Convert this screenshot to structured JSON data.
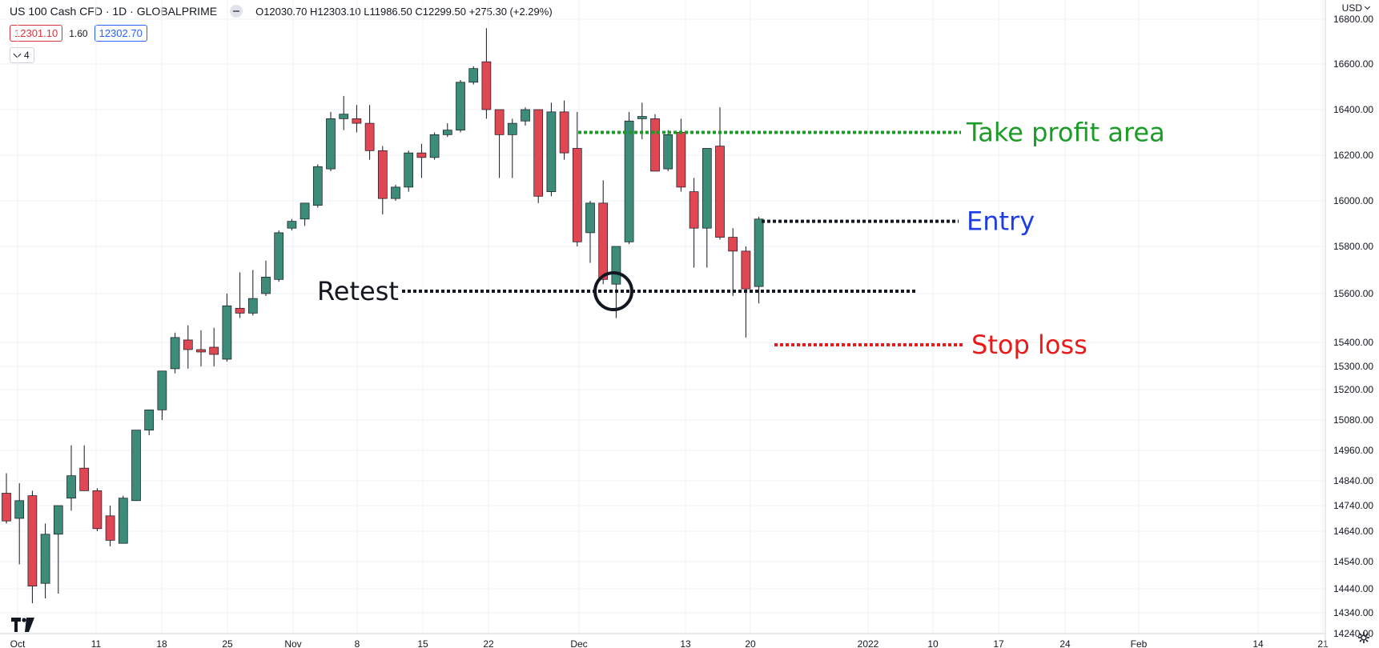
{
  "header": {
    "symbol": "US 100 Cash CFD · 1D · GLOBALPRIME",
    "ohlc": "O12030.70 H12303.10 L11986.50 C12299.50 +275.30 (+2.29%)"
  },
  "quote": {
    "sell": "12301.10",
    "spread": "1.60",
    "buy": "12302.70"
  },
  "indicators_collapsed": "4",
  "currency": "USD",
  "colors": {
    "up": "#3d8c79",
    "down": "#df4852",
    "grid": "#eef0f3",
    "axis_text": "#131722"
  },
  "chart_data": {
    "type": "candlestick",
    "x_tick_labels": [
      "Oct",
      "11",
      "18",
      "25",
      "Nov",
      "8",
      "15",
      "22",
      "Dec",
      "13",
      "20",
      "2022",
      "10",
      "17",
      "24",
      "Feb",
      "14",
      "21"
    ],
    "y_tick_labels": [
      "16800.00",
      "16600.00",
      "16400.00",
      "16200.00",
      "16000.00",
      "15800.00",
      "15600.00",
      "15400.00",
      "15300.00",
      "15200.00",
      "15080.00",
      "14960.00",
      "14840.00",
      "14740.00",
      "14640.00",
      "14540.00",
      "14440.00",
      "14340.00",
      "14240.00"
    ],
    "candles": [
      {
        "o": 14790,
        "h": 14870,
        "l": 14670,
        "c": 14680
      },
      {
        "o": 14690,
        "h": 14830,
        "l": 14530,
        "c": 14760
      },
      {
        "o": 14780,
        "h": 14800,
        "l": 14380,
        "c": 14450
      },
      {
        "o": 14460,
        "h": 14670,
        "l": 14400,
        "c": 14630
      },
      {
        "o": 14630,
        "h": 14740,
        "l": 14420,
        "c": 14740
      },
      {
        "o": 14770,
        "h": 14980,
        "l": 14720,
        "c": 14860
      },
      {
        "o": 14890,
        "h": 14980,
        "l": 14820,
        "c": 14800
      },
      {
        "o": 14800,
        "h": 14810,
        "l": 14640,
        "c": 14650
      },
      {
        "o": 14700,
        "h": 14740,
        "l": 14590,
        "c": 14610
      },
      {
        "o": 14600,
        "h": 14780,
        "l": 14600,
        "c": 14770
      },
      {
        "o": 14760,
        "h": 15040,
        "l": 14760,
        "c": 15040
      },
      {
        "o": 15040,
        "h": 15120,
        "l": 15020,
        "c": 15120
      },
      {
        "o": 15120,
        "h": 15280,
        "l": 15080,
        "c": 15280
      },
      {
        "o": 15290,
        "h": 15440,
        "l": 15270,
        "c": 15420
      },
      {
        "o": 15410,
        "h": 15470,
        "l": 15290,
        "c": 15370
      },
      {
        "o": 15370,
        "h": 15450,
        "l": 15300,
        "c": 15360
      },
      {
        "o": 15380,
        "h": 15460,
        "l": 15300,
        "c": 15350
      },
      {
        "o": 15330,
        "h": 15600,
        "l": 15320,
        "c": 15550
      },
      {
        "o": 15540,
        "h": 15690,
        "l": 15500,
        "c": 15520
      },
      {
        "o": 15520,
        "h": 15700,
        "l": 15510,
        "c": 15580
      },
      {
        "o": 15600,
        "h": 15740,
        "l": 15590,
        "c": 15670
      },
      {
        "o": 15660,
        "h": 15870,
        "l": 15650,
        "c": 15860
      },
      {
        "o": 15880,
        "h": 15920,
        "l": 15870,
        "c": 15910
      },
      {
        "o": 15920,
        "h": 15980,
        "l": 15890,
        "c": 15990
      },
      {
        "o": 15980,
        "h": 16160,
        "l": 15970,
        "c": 16150
      },
      {
        "o": 16140,
        "h": 16390,
        "l": 16130,
        "c": 16360
      },
      {
        "o": 16360,
        "h": 16460,
        "l": 16310,
        "c": 16380
      },
      {
        "o": 16360,
        "h": 16420,
        "l": 16300,
        "c": 16340
      },
      {
        "o": 16340,
        "h": 16420,
        "l": 16180,
        "c": 16220
      },
      {
        "o": 16220,
        "h": 16240,
        "l": 15940,
        "c": 16010
      },
      {
        "o": 16010,
        "h": 16070,
        "l": 16000,
        "c": 16060
      },
      {
        "o": 16060,
        "h": 16220,
        "l": 16040,
        "c": 16210
      },
      {
        "o": 16210,
        "h": 16250,
        "l": 16100,
        "c": 16190
      },
      {
        "o": 16190,
        "h": 16300,
        "l": 16180,
        "c": 16290
      },
      {
        "o": 16290,
        "h": 16340,
        "l": 16280,
        "c": 16310
      },
      {
        "o": 16310,
        "h": 16530,
        "l": 16300,
        "c": 16520
      },
      {
        "o": 16520,
        "h": 16590,
        "l": 16510,
        "c": 16580
      },
      {
        "o": 16610,
        "h": 16760,
        "l": 16360,
        "c": 16400
      },
      {
        "o": 16400,
        "h": 16400,
        "l": 16100,
        "c": 16290
      },
      {
        "o": 16290,
        "h": 16360,
        "l": 16100,
        "c": 16340
      },
      {
        "o": 16350,
        "h": 16410,
        "l": 16330,
        "c": 16400
      },
      {
        "o": 16400,
        "h": 16400,
        "l": 15990,
        "c": 16020
      },
      {
        "o": 16040,
        "h": 16430,
        "l": 16020,
        "c": 16390
      },
      {
        "o": 16390,
        "h": 16440,
        "l": 16180,
        "c": 16210
      },
      {
        "o": 16230,
        "h": 16390,
        "l": 15800,
        "c": 15820
      },
      {
        "o": 15860,
        "h": 16000,
        "l": 15730,
        "c": 15990
      },
      {
        "o": 15990,
        "h": 16090,
        "l": 15640,
        "c": 15660
      },
      {
        "o": 15640,
        "h": 15800,
        "l": 15500,
        "c": 15800
      },
      {
        "o": 15820,
        "h": 16390,
        "l": 15810,
        "c": 16350
      },
      {
        "o": 16360,
        "h": 16430,
        "l": 16270,
        "c": 16370
      },
      {
        "o": 16360,
        "h": 16380,
        "l": 16150,
        "c": 16130
      },
      {
        "o": 16140,
        "h": 16310,
        "l": 16130,
        "c": 16290
      },
      {
        "o": 16300,
        "h": 16360,
        "l": 16040,
        "c": 16060
      },
      {
        "o": 16040,
        "h": 16100,
        "l": 15710,
        "c": 15880
      },
      {
        "o": 15880,
        "h": 16230,
        "l": 15710,
        "c": 16230
      },
      {
        "o": 16240,
        "h": 16410,
        "l": 15830,
        "c": 15840
      },
      {
        "o": 15840,
        "h": 15880,
        "l": 15590,
        "c": 15780
      },
      {
        "o": 15780,
        "h": 15800,
        "l": 15420,
        "c": 15620
      },
      {
        "o": 15630,
        "h": 15930,
        "l": 15560,
        "c": 15920
      }
    ],
    "annotations": [
      {
        "text": "Take profit area",
        "price": 16300,
        "color": "#1a9c26"
      },
      {
        "text": "Entry",
        "price": 15910,
        "color": "#1d3ee6"
      },
      {
        "text": "Retest",
        "price": 15610,
        "color": "#131722"
      },
      {
        "text": "Stop loss",
        "price": 15390,
        "color": "#e81b1b"
      }
    ]
  }
}
